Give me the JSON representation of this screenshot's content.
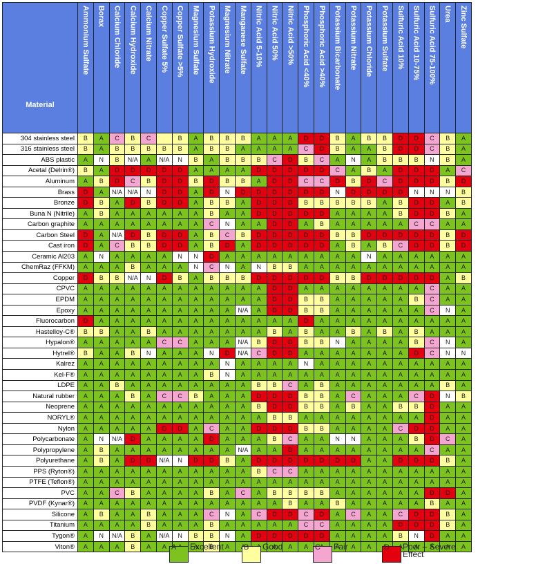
{
  "header": {
    "material_label": "Material"
  },
  "chemicals": [
    "Ammonium Sulfate",
    "Borax",
    "Calcium Chloride",
    "Calcium Hydroxide",
    "Calcium Nitrate",
    "Copper Sulfate 5%",
    "Copper Sulfate >5%",
    "Magnesium Sulfate",
    "Potassium Hydroxide",
    "Magnesium Nitrate",
    "Manganese Sulfate",
    "Nitric Acid 5-10%",
    "Nitric Acid 50%",
    "Nitric Acid >50%",
    "Phosphoric Acid <40%",
    "Phosphoric Acid >40%",
    "Potassium Bicarbonate",
    "Potassium Nitrate",
    "Potassium Chloride",
    "Potassium Sulfate",
    "Sulfuric Acid 10%",
    "Sulfuric Acid 10-75%",
    "Sulfuric Acid 75-100%",
    "Urea",
    "Zinc Sulfate"
  ],
  "rows": [
    {
      "m": "304 stainless steel",
      "v": [
        "B",
        "A",
        "C",
        "B",
        "C",
        "",
        "B",
        "A",
        "B",
        "B",
        "B",
        "A",
        "A",
        "A",
        "D",
        "D",
        "B",
        "A",
        "B",
        "B",
        "D",
        "D",
        "C",
        "B",
        "A"
      ]
    },
    {
      "m": "316 stainless steel",
      "v": [
        "B",
        "A",
        "B",
        "B",
        "B",
        "B",
        "B",
        "A",
        "B",
        "B",
        "A",
        "A",
        "A",
        "A",
        "C",
        "D",
        "B",
        "A",
        "A",
        "B",
        "D",
        "D",
        "C",
        "B",
        "A"
      ]
    },
    {
      "m": "ABS plastic",
      "v": [
        "A",
        "N",
        "B",
        "N/A",
        "A",
        "N/A",
        "N",
        "B",
        "A",
        "B",
        "B",
        "B",
        "C",
        "D",
        "B",
        "C",
        "A",
        "N",
        "A",
        "B",
        "B",
        "B",
        "N",
        "B",
        "A"
      ]
    },
    {
      "m": "Acetal (Delrin®)",
      "v": [
        "B",
        "A",
        "D",
        "D",
        "D",
        "D",
        "D",
        "A",
        "A",
        "A",
        "A",
        "D",
        "D",
        "D",
        "D",
        "D",
        "C",
        "A",
        "B",
        "A",
        "D",
        "D",
        "D",
        "A",
        "C"
      ]
    },
    {
      "m": "Aluminum",
      "v": [
        "A",
        "B",
        "D",
        "C",
        "B",
        "D",
        "D",
        "B",
        "D",
        "B",
        "B",
        "A",
        "D",
        "D",
        "C",
        "C",
        "D",
        "B",
        "D",
        "C",
        "D",
        "D",
        "D",
        "B",
        "D"
      ]
    },
    {
      "m": "Brass",
      "v": [
        "D",
        "A",
        "N/A",
        "N/A",
        "N",
        "D",
        "D",
        "A",
        "D",
        "N",
        "D",
        "D",
        "D",
        "D",
        "D",
        "D",
        "N",
        "D",
        "D",
        "D",
        "D",
        "N",
        "N",
        "N",
        "B"
      ]
    },
    {
      "m": "Bronze",
      "v": [
        "D",
        "B",
        "A",
        "D",
        "B",
        "D",
        "D",
        "A",
        "B",
        "B",
        "A",
        "D",
        "D",
        "D",
        "B",
        "B",
        "B",
        "B",
        "B",
        "A",
        "B",
        "D",
        "D",
        "A",
        "B"
      ]
    },
    {
      "m": "Buna N (Nitrile)",
      "v": [
        "A",
        "B",
        "A",
        "A",
        "A",
        "A",
        "A",
        "A",
        "B",
        "A",
        "A",
        "D",
        "D",
        "D",
        "D",
        "D",
        "A",
        "A",
        "A",
        "A",
        "B",
        "D",
        "D",
        "B",
        "A"
      ]
    },
    {
      "m": "Carbon graphite",
      "v": [
        "A",
        "A",
        "A",
        "A",
        "A",
        "A",
        "A",
        "A",
        "C",
        "N",
        "A",
        "A",
        "D",
        "D",
        "A",
        "B",
        "A",
        "A",
        "A",
        "A",
        "A",
        "C",
        "C",
        "A",
        "A"
      ]
    },
    {
      "m": "Carbon Steel",
      "v": [
        "D",
        "A",
        "N/A",
        "D",
        "B",
        "D",
        "D",
        "A",
        "B",
        "C",
        "B",
        "D",
        "D",
        "D",
        "D",
        "D",
        "B",
        "B",
        "D",
        "D",
        "D",
        "D",
        "D",
        "B",
        "D"
      ]
    },
    {
      "m": "Cast iron",
      "v": [
        "D",
        "A",
        "C",
        "B",
        "B",
        "D",
        "D",
        "A",
        "B",
        "D",
        "A",
        "D",
        "D",
        "D",
        "D",
        "D",
        "A",
        "B",
        "A",
        "B",
        "C",
        "D",
        "D",
        "B",
        "D"
      ]
    },
    {
      "m": "Ceramic Al203",
      "v": [
        "A",
        "N",
        "A",
        "A",
        "A",
        "A",
        "N",
        "N",
        "D",
        "A",
        "A",
        "A",
        "A",
        "A",
        "A",
        "A",
        "A",
        "A",
        "N",
        "A",
        "A",
        "A",
        "A",
        "A",
        "A"
      ]
    },
    {
      "m": "ChemRaz (FFKM)",
      "v": [
        "A",
        "A",
        "A",
        "B",
        "A",
        "A",
        "A",
        "N",
        "C",
        "N",
        "A",
        "N",
        "B",
        "B",
        "A",
        "A",
        "A",
        "A",
        "A",
        "A",
        "A",
        "A",
        "A",
        "A",
        "A"
      ]
    },
    {
      "m": "Copper",
      "v": [
        "D",
        "B",
        "B",
        "N/A",
        "N",
        "D",
        "B",
        "A",
        "B",
        "B",
        "B",
        "D",
        "D",
        "D",
        "D",
        "D",
        "B",
        "B",
        "D",
        "D",
        "D",
        "D",
        "D",
        "A",
        "B"
      ]
    },
    {
      "m": "CPVC",
      "v": [
        "A",
        "A",
        "A",
        "A",
        "A",
        "A",
        "A",
        "A",
        "A",
        "A",
        "A",
        "A",
        "D",
        "D",
        "A",
        "A",
        "A",
        "A",
        "A",
        "A",
        "A",
        "A",
        "C",
        "A",
        "A"
      ]
    },
    {
      "m": "EPDM",
      "v": [
        "A",
        "A",
        "A",
        "A",
        "A",
        "A",
        "A",
        "A",
        "A",
        "A",
        "A",
        "A",
        "D",
        "D",
        "B",
        "B",
        "A",
        "A",
        "A",
        "A",
        "A",
        "B",
        "C",
        "A",
        "A"
      ]
    },
    {
      "m": "Epoxy",
      "v": [
        "A",
        "A",
        "A",
        "A",
        "A",
        "A",
        "A",
        "A",
        "A",
        "A",
        "N/A",
        "A",
        "D",
        "D",
        "B",
        "B",
        "A",
        "A",
        "A",
        "A",
        "A",
        "A",
        "C",
        "N",
        "A"
      ]
    },
    {
      "m": "Fluorocarbon",
      "v": [
        "D",
        "A",
        "A",
        "A",
        "A",
        "A",
        "A",
        "A",
        "A",
        "A",
        "A",
        "A",
        "A",
        "A",
        "D",
        "A",
        "A",
        "A",
        "A",
        "A",
        "A",
        "A",
        "A",
        "A",
        "A"
      ]
    },
    {
      "m": "Hastelloy-C®",
      "v": [
        "B",
        "B",
        "A",
        "A",
        "B",
        "A",
        "A",
        "A",
        "A",
        "A",
        "A",
        "A",
        "B",
        "A",
        "B",
        "A",
        "A",
        "B",
        "A",
        "B",
        "A",
        "B",
        "A",
        "A",
        "A"
      ]
    },
    {
      "m": "Hypalon®",
      "v": [
        "A",
        "A",
        "A",
        "A",
        "A",
        "C",
        "C",
        "A",
        "A",
        "A",
        "N/A",
        "B",
        "D",
        "D",
        "B",
        "B",
        "N",
        "A",
        "A",
        "A",
        "A",
        "B",
        "C",
        "N",
        "A"
      ]
    },
    {
      "m": "Hytrel®",
      "v": [
        "B",
        "A",
        "A",
        "B",
        "N",
        "A",
        "A",
        "A",
        "N",
        "D",
        "N/A",
        "C",
        "D",
        "D",
        "A",
        "A",
        "A",
        "A",
        "A",
        "A",
        "A",
        "D",
        "C",
        "N",
        "N"
      ]
    },
    {
      "m": "Kalrez",
      "v": [
        "A",
        "A",
        "A",
        "A",
        "A",
        "A",
        "A",
        "A",
        "A",
        "N",
        "A",
        "A",
        "A",
        "A",
        "N",
        "A",
        "A",
        "A",
        "A",
        "A",
        "A",
        "A",
        "A",
        "A",
        "A"
      ]
    },
    {
      "m": "Kel-F®",
      "v": [
        "A",
        "A",
        "A",
        "A",
        "A",
        "A",
        "A",
        "A",
        "B",
        "N",
        "A",
        "A",
        "A",
        "A",
        "A",
        "A",
        "A",
        "A",
        "A",
        "A",
        "A",
        "A",
        "A",
        "A",
        "A"
      ]
    },
    {
      "m": "LDPE",
      "v": [
        "A",
        "A",
        "B",
        "A",
        "A",
        "A",
        "A",
        "A",
        "A",
        "A",
        "A",
        "B",
        "B",
        "C",
        "A",
        "B",
        "A",
        "A",
        "A",
        "A",
        "A",
        "A",
        "A",
        "B",
        "A"
      ]
    },
    {
      "m": "Natural rubber",
      "v": [
        "A",
        "A",
        "A",
        "B",
        "A",
        "C",
        "C",
        "B",
        "A",
        "A",
        "A",
        "D",
        "D",
        "D",
        "B",
        "B",
        "A",
        "C",
        "A",
        "A",
        "A",
        "C",
        "D",
        "N",
        "B"
      ]
    },
    {
      "m": "Neoprene",
      "v": [
        "A",
        "A",
        "A",
        "A",
        "A",
        "A",
        "A",
        "A",
        "A",
        "A",
        "A",
        "B",
        "D",
        "D",
        "B",
        "B",
        "A",
        "B",
        "A",
        "A",
        "B",
        "B",
        "D",
        "A",
        "A"
      ]
    },
    {
      "m": "NORYL®",
      "v": [
        "A",
        "A",
        "A",
        "A",
        "A",
        "A",
        "A",
        "A",
        "A",
        "A",
        "A",
        "A",
        "B",
        "B",
        "A",
        "A",
        "A",
        "A",
        "A",
        "A",
        "A",
        "A",
        "D",
        "A",
        "A"
      ]
    },
    {
      "m": "Nylon",
      "v": [
        "A",
        "A",
        "A",
        "A",
        "A",
        "D",
        "D",
        "A",
        "C",
        "A",
        "A",
        "D",
        "D",
        "D",
        "B",
        "B",
        "A",
        "A",
        "A",
        "A",
        "C",
        "D",
        "D",
        "A",
        "A"
      ]
    },
    {
      "m": "Polycarbonate",
      "v": [
        "A",
        "N",
        "N/A",
        "D",
        "A",
        "A",
        "A",
        "A",
        "D",
        "A",
        "A",
        "A",
        "B",
        "C",
        "A",
        "A",
        "N",
        "N",
        "A",
        "A",
        "A",
        "B",
        "D",
        "C",
        "A"
      ]
    },
    {
      "m": "Polypropylene",
      "v": [
        "A",
        "B",
        "A",
        "A",
        "A",
        "A",
        "A",
        "A",
        "A",
        "A",
        "N/A",
        "A",
        "A",
        "D",
        "A",
        "A",
        "A",
        "A",
        "A",
        "A",
        "A",
        "A",
        "C",
        "A",
        "A"
      ]
    },
    {
      "m": "Polyurethane",
      "v": [
        "A",
        "B",
        "A",
        "D",
        "D",
        "N/A",
        "N",
        "D",
        "D",
        "B",
        "A",
        "D",
        "D",
        "D",
        "D",
        "D",
        "D",
        "D",
        "A",
        "A",
        "D",
        "D",
        "D",
        "B",
        "A"
      ]
    },
    {
      "m": "PPS (Ryton®)",
      "v": [
        "A",
        "A",
        "A",
        "A",
        "A",
        "A",
        "A",
        "A",
        "A",
        "A",
        "A",
        "B",
        "C",
        "C",
        "A",
        "A",
        "A",
        "A",
        "A",
        "A",
        "A",
        "A",
        "A",
        "A",
        "A"
      ]
    },
    {
      "m": "PTFE (Teflon®)",
      "v": [
        "A",
        "A",
        "A",
        "A",
        "A",
        "A",
        "A",
        "A",
        "A",
        "A",
        "A",
        "A",
        "A",
        "A",
        "A",
        "A",
        "A",
        "A",
        "A",
        "A",
        "A",
        "A",
        "A",
        "A",
        "A"
      ]
    },
    {
      "m": "PVC",
      "v": [
        "A",
        "A",
        "C",
        "B",
        "A",
        "A",
        "A",
        "A",
        "B",
        "A",
        "C",
        "A",
        "B",
        "B",
        "B",
        "B",
        "A",
        "A",
        "A",
        "A",
        "A",
        "A",
        "D",
        "D",
        "A"
      ]
    },
    {
      "m": "PVDF (Kynar®)",
      "v": [
        "A",
        "A",
        "A",
        "A",
        "A",
        "A",
        "A",
        "A",
        "A",
        "A",
        "A",
        "A",
        "A",
        "B",
        "A",
        "A",
        "B",
        "A",
        "A",
        "A",
        "A",
        "A",
        "B",
        "A",
        "A"
      ]
    },
    {
      "m": "Silicone",
      "v": [
        "A",
        "B",
        "A",
        "A",
        "B",
        "A",
        "A",
        "A",
        "C",
        "N",
        "A",
        "C",
        "D",
        "D",
        "C",
        "D",
        "A",
        "C",
        "A",
        "A",
        "C",
        "D",
        "D",
        "B",
        "A"
      ]
    },
    {
      "m": "Titanium",
      "v": [
        "A",
        "A",
        "A",
        "A",
        "B",
        "A",
        "A",
        "A",
        "B",
        "A",
        "A",
        "A",
        "A",
        "A",
        "C",
        "C",
        "A",
        "A",
        "A",
        "A",
        "D",
        "D",
        "D",
        "B",
        "A"
      ]
    },
    {
      "m": "Tygon®",
      "v": [
        "A",
        "N",
        "N/A",
        "B",
        "A",
        "N/A",
        "N",
        "B",
        "B",
        "N",
        "A",
        "D",
        "D",
        "D",
        "D",
        "D",
        "A",
        "A",
        "A",
        "A",
        "B",
        "N",
        "D",
        "A",
        "A"
      ]
    },
    {
      "m": "Viton®",
      "v": [
        "A",
        "A",
        "A",
        "B",
        "A",
        "A",
        "A",
        "A",
        "B",
        "A",
        "A",
        "A",
        "A",
        "A",
        "A",
        "A",
        "A",
        "A",
        "A",
        "A",
        "A",
        "A",
        "A",
        "A",
        "A"
      ]
    }
  ],
  "colors": {
    "A": "#7dc31f",
    "B": "#ffffa0",
    "C": "#f4a6d0",
    "D": "#e3000f",
    "N": "#ffffff",
    "N/A": "#ffffff"
  },
  "legend": [
    {
      "key": "A",
      "label": "Excellent"
    },
    {
      "key": "B",
      "label": "Good"
    },
    {
      "key": "C",
      "label": "Fair"
    },
    {
      "key": "D",
      "label": "Poor – Severe Effect"
    }
  ]
}
